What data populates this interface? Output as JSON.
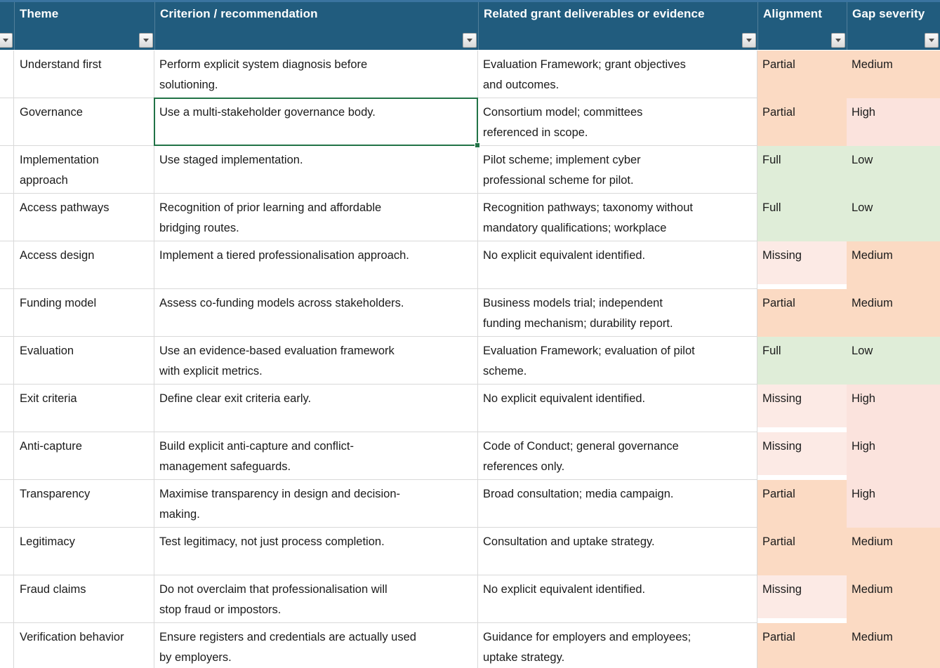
{
  "app": {
    "kind": "spreadsheet-worksheet"
  },
  "icons": {
    "filter_dropdown": "chevron-down"
  },
  "colors": {
    "header_bg": "#215C7E",
    "header_top_line": "#3A74A0",
    "header_text": "#FFFFFF",
    "gridline": "#D9D9D9",
    "body_text": "#1B1B1B",
    "selection_border": "#217346",
    "fills": {
      "Partial": "#FBDAC3",
      "Full": "#DFEDD8",
      "Missing": "#FCEAE5",
      "Medium": "#FBDAC3",
      "High": "#FBE3DD",
      "Low": "#DFEDD8"
    }
  },
  "selection": {
    "row": 2,
    "column": "criterion"
  },
  "table": {
    "columns": [
      {
        "key": "blank",
        "label": ""
      },
      {
        "key": "theme",
        "label": "Theme"
      },
      {
        "key": "criterion",
        "label": "Criterion / recommendation"
      },
      {
        "key": "evidence",
        "label": "Related grant deliverables or evidence"
      },
      {
        "key": "alignment",
        "label": "Alignment"
      },
      {
        "key": "gap",
        "label": "Gap severity"
      }
    ],
    "rows": [
      {
        "theme": "Understand first",
        "criterion": "Perform explicit system diagnosis before\nsolutioning.",
        "evidence": "Evaluation Framework; grant objectives\nand outcomes.",
        "alignment": "Partial",
        "gap": "Medium"
      },
      {
        "theme": "Governance",
        "criterion": "Use a multi-stakeholder governance body.",
        "evidence": "Consortium model; committees\nreferenced in scope.",
        "alignment": "Partial",
        "gap": "High"
      },
      {
        "theme": "Implementation\napproach",
        "criterion": "Use staged implementation.",
        "evidence": "Pilot scheme; implement cyber\nprofessional scheme for pilot.",
        "alignment": "Full",
        "gap": "Low"
      },
      {
        "theme": "Access pathways",
        "criterion": "Recognition of prior learning and affordable\nbridging routes.",
        "evidence": "Recognition pathways; taxonomy without\nmandatory qualifications; workplace",
        "alignment": "Full",
        "gap": "Low"
      },
      {
        "theme": "Access design",
        "criterion": "Implement a tiered professionalisation approach.",
        "evidence": "No explicit equivalent identified.",
        "alignment": "Missing",
        "gap": "Medium"
      },
      {
        "theme": "Funding model",
        "criterion": "Assess co-funding models across stakeholders.",
        "evidence": "Business models trial; independent\nfunding mechanism; durability report.",
        "alignment": "Partial",
        "gap": "Medium"
      },
      {
        "theme": "Evaluation",
        "criterion": "Use an evidence-based evaluation framework\nwith explicit metrics.",
        "evidence": "Evaluation Framework; evaluation of pilot\nscheme.",
        "alignment": "Full",
        "gap": "Low"
      },
      {
        "theme": "Exit criteria",
        "criterion": "Define clear exit criteria early.",
        "evidence": "No explicit equivalent identified.",
        "alignment": "Missing",
        "gap": "High"
      },
      {
        "theme": "Anti-capture",
        "criterion": "Build explicit anti-capture and conflict-\nmanagement safeguards.",
        "evidence": "Code of Conduct; general governance\nreferences only.",
        "alignment": "Missing",
        "gap": "High"
      },
      {
        "theme": "Transparency",
        "criterion": "Maximise transparency in design and decision-\nmaking.",
        "evidence": "Broad consultation; media campaign.",
        "alignment": "Partial",
        "gap": "High"
      },
      {
        "theme": "Legitimacy",
        "criterion": "Test legitimacy, not just process completion.",
        "evidence": "Consultation and uptake strategy.",
        "alignment": "Partial",
        "gap": "Medium"
      },
      {
        "theme": "Fraud claims",
        "criterion": "Do not overclaim that professionalisation will\nstop fraud or impostors.",
        "evidence": "No explicit equivalent identified.",
        "alignment": "Missing",
        "gap": "Medium"
      },
      {
        "theme": "Verification behavior",
        "criterion": "Ensure registers and credentials are actually used\nby employers.",
        "evidence": "Guidance for employers and employees;\nuptake strategy.",
        "alignment": "Partial",
        "gap": "Medium"
      }
    ]
  }
}
